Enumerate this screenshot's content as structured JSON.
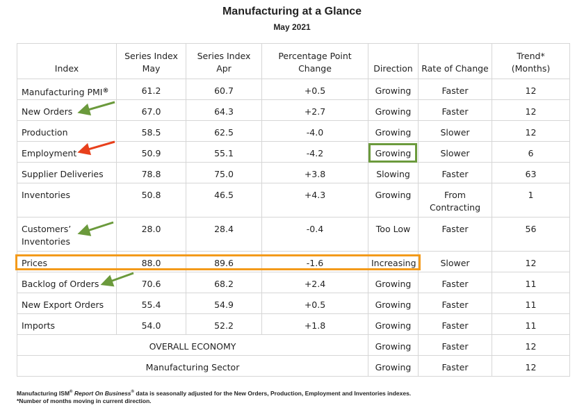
{
  "title": "Manufacturing at a Glance",
  "subtitle": "May 2021",
  "headers": {
    "index": "Index",
    "may_1": "Series Index",
    "may_2": "May",
    "apr_1": "Series Index",
    "apr_2": "Apr",
    "ppc_1": "Percentage Point",
    "ppc_2": "Change",
    "direction": "Direction",
    "rate": "Rate of Change",
    "trend_1": "Trend*",
    "trend_2": "(Months)"
  },
  "rows": [
    {
      "index": "Manufacturing PMI",
      "may": "61.2",
      "apr": "60.7",
      "change": "+0.5",
      "direction": "Growing",
      "rate": "Faster",
      "trend": "12"
    },
    {
      "index": "New Orders",
      "may": "67.0",
      "apr": "64.3",
      "change": "+2.7",
      "direction": "Growing",
      "rate": "Faster",
      "trend": "12"
    },
    {
      "index": "Production",
      "may": "58.5",
      "apr": "62.5",
      "change": "-4.0",
      "direction": "Growing",
      "rate": "Slower",
      "trend": "12"
    },
    {
      "index": "Employment",
      "may": "50.9",
      "apr": "55.1",
      "change": "-4.2",
      "direction": "Growing",
      "rate": "Slower",
      "trend": "6"
    },
    {
      "index": "Supplier Deliveries",
      "may": "78.8",
      "apr": "75.0",
      "change": "+3.8",
      "direction": "Slowing",
      "rate": "Faster",
      "trend": "63"
    },
    {
      "index": "Inventories",
      "may": "50.8",
      "apr": "46.5",
      "change": "+4.3",
      "direction": "Growing",
      "rate_1": "From",
      "rate_2": "Contracting",
      "trend": "1"
    },
    {
      "index_1": "Customers’",
      "index_2": "Inventories",
      "may": "28.0",
      "apr": "28.4",
      "change": "-0.4",
      "direction": "Too Low",
      "rate": "Faster",
      "trend": "56"
    },
    {
      "index": "Prices",
      "may": "88.0",
      "apr": "89.6",
      "change": "-1.6",
      "direction": "Increasing",
      "rate": "Slower",
      "trend": "12"
    },
    {
      "index": "Backlog of Orders",
      "may": "70.6",
      "apr": "68.2",
      "change": "+2.4",
      "direction": "Growing",
      "rate": "Faster",
      "trend": "11"
    },
    {
      "index": "New Export Orders",
      "may": "55.4",
      "apr": "54.9",
      "change": "+0.5",
      "direction": "Growing",
      "rate": "Faster",
      "trend": "11"
    },
    {
      "index": "Imports",
      "may": "54.0",
      "apr": "52.2",
      "change": "+1.8",
      "direction": "Growing",
      "rate": "Faster",
      "trend": "11"
    }
  ],
  "summary": [
    {
      "label": "OVERALL ECONOMY",
      "direction": "Growing",
      "rate": "Faster",
      "trend": "12"
    },
    {
      "label": "Manufacturing Sector",
      "direction": "Growing",
      "rate": "Faster",
      "trend": "12"
    }
  ],
  "footnote": {
    "pre": "Manufacturing ISM",
    "sup1": "®",
    "ital": "Report On Business",
    "sup2": "®",
    "post": " data is seasonally adjusted for the New Orders, Production, Employment and Inventories indexes.",
    "line2": "*Number of months moving in current direction."
  },
  "colors": {
    "green_highlight": "#6b9a3c",
    "orange_highlight": "#f39a1a",
    "green_arrow": "#6b9a3c",
    "red_arrow": "#e8401c"
  }
}
